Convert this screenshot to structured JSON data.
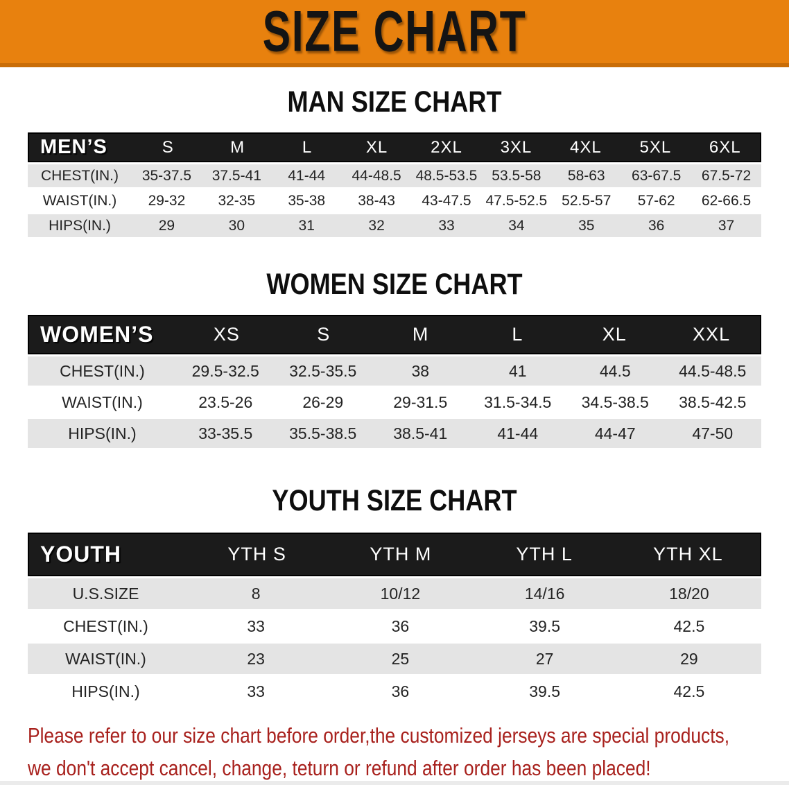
{
  "banner": {
    "title": "SIZE CHART"
  },
  "tables": [
    {
      "id": "men",
      "title": "MAN SIZE CHART",
      "header_label": "MEN’S",
      "columns": [
        "S",
        "M",
        "L",
        "XL",
        "2XL",
        "3XL",
        "4XL",
        "5XL",
        "6XL"
      ],
      "rows": [
        {
          "label": "CHEST(IN.)",
          "values": [
            "35-37.5",
            "37.5-41",
            "41-44",
            "44-48.5",
            "48.5-53.5",
            "53.5-58",
            "58-63",
            "63-67.5",
            "67.5-72"
          ]
        },
        {
          "label": "WAIST(IN.)",
          "values": [
            "29-32",
            "32-35",
            "35-38",
            "38-43",
            "43-47.5",
            "47.5-52.5",
            "52.5-57",
            "57-62",
            "62-66.5"
          ]
        },
        {
          "label": "HIPS(IN.)",
          "values": [
            "29",
            "30",
            "31",
            "32",
            "33",
            "34",
            "35",
            "36",
            "37"
          ]
        }
      ]
    },
    {
      "id": "women",
      "title": "WOMEN SIZE CHART",
      "header_label": "WOMEN’S",
      "columns": [
        "XS",
        "S",
        "M",
        "L",
        "XL",
        "XXL"
      ],
      "rows": [
        {
          "label": "CHEST(IN.)",
          "values": [
            "29.5-32.5",
            "32.5-35.5",
            "38",
            "41",
            "44.5",
            "44.5-48.5"
          ]
        },
        {
          "label": "WAIST(IN.)",
          "values": [
            "23.5-26",
            "26-29",
            "29-31.5",
            "31.5-34.5",
            "34.5-38.5",
            "38.5-42.5"
          ]
        },
        {
          "label": "HIPS(IN.)",
          "values": [
            "33-35.5",
            "35.5-38.5",
            "38.5-41",
            "41-44",
            "44-47",
            "47-50"
          ]
        }
      ]
    },
    {
      "id": "youth",
      "title": "YOUTH SIZE CHART",
      "header_label": "YOUTH",
      "columns": [
        "YTH S",
        "YTH M",
        "YTH L",
        "YTH XL"
      ],
      "rows": [
        {
          "label": "U.S.SIZE",
          "values": [
            "8",
            "10/12",
            "14/16",
            "18/20"
          ]
        },
        {
          "label": "CHEST(IN.)",
          "values": [
            "33",
            "36",
            "39.5",
            "42.5"
          ]
        },
        {
          "label": "WAIST(IN.)",
          "values": [
            "23",
            "25",
            "27",
            "29"
          ]
        },
        {
          "label": "HIPS(IN.)",
          "values": [
            "33",
            "36",
            "39.5",
            "42.5"
          ]
        }
      ]
    }
  ],
  "footer_note": {
    "lines": [
      "Please refer to our size chart before order,the customized jerseys are special products,",
      "we don't accept cancel, change, teturn or refund after order has been placed!"
    ]
  },
  "colors": {
    "banner_orange": "#e8810e",
    "banner_border": "#c96d07",
    "header_bar_black": "#1b1b1b",
    "row_gray": "#e4e4e4",
    "row_white": "#ffffff",
    "note_red": "#a8211d"
  }
}
